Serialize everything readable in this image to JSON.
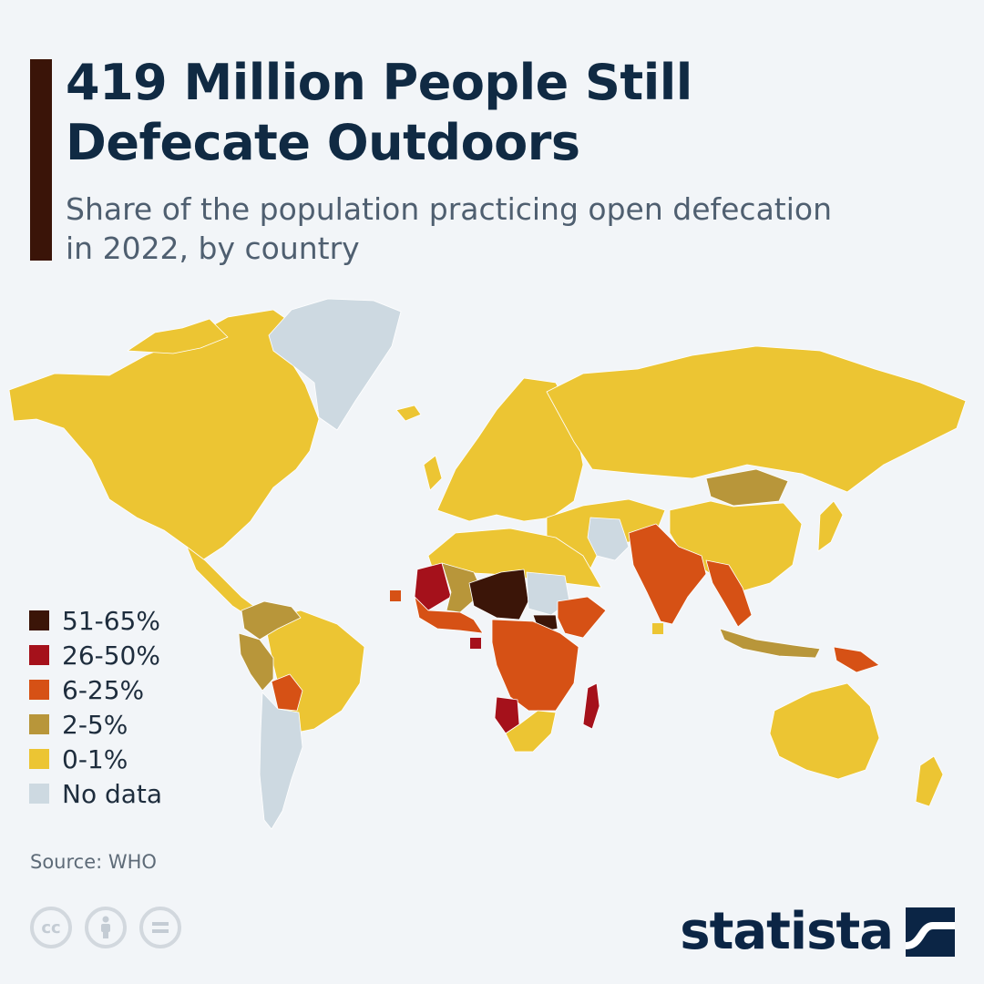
{
  "header": {
    "title": "419 Million People Still Defecate Outdoors",
    "subtitle": "Share of the population practicing open defecation in 2022, by country"
  },
  "legend": [
    {
      "label": "51-65%",
      "color": "#3b1508"
    },
    {
      "label": "26-50%",
      "color": "#a5111b"
    },
    {
      "label": "6-25%",
      "color": "#d65115"
    },
    {
      "label": "2-5%",
      "color": "#b8963a"
    },
    {
      "label": "0-1%",
      "color": "#ecc533"
    },
    {
      "label": "No data",
      "color": "#cdd9e1"
    }
  ],
  "source": "Source: WHO",
  "brand": "statista",
  "license_icons": [
    "creative-commons-icon",
    "attribution-icon",
    "no-derivatives-icon"
  ],
  "map_data": {
    "type": "choropleth",
    "metric": "Share of the population practicing open defecation, 2022",
    "regions": [
      {
        "name": "North America",
        "category": "0-1%"
      },
      {
        "name": "Greenland",
        "category": "No data"
      },
      {
        "name": "Central America",
        "category": "0-1%"
      },
      {
        "name": "Colombia/Venezuela",
        "category": "2-5%"
      },
      {
        "name": "Peru",
        "category": "2-5%"
      },
      {
        "name": "Bolivia",
        "category": "6-25%"
      },
      {
        "name": "Brazil",
        "category": "0-1%"
      },
      {
        "name": "Argentina/Chile",
        "category": "No data"
      },
      {
        "name": "Europe",
        "category": "0-1%"
      },
      {
        "name": "Russia",
        "category": "0-1%"
      },
      {
        "name": "Mongolia",
        "category": "2-5%"
      },
      {
        "name": "China",
        "category": "0-1%"
      },
      {
        "name": "Middle East",
        "category": "0-1%"
      },
      {
        "name": "Iran",
        "category": "No data"
      },
      {
        "name": "India/Pakistan",
        "category": "6-25%"
      },
      {
        "name": "Myanmar/Southeast Asia",
        "category": "6-25%"
      },
      {
        "name": "Indonesia",
        "category": "2-5%"
      },
      {
        "name": "Papua New Guinea",
        "category": "6-25%"
      },
      {
        "name": "Australia",
        "category": "0-1%"
      },
      {
        "name": "North Africa",
        "category": "0-1%"
      },
      {
        "name": "Mauritania",
        "category": "26-50%"
      },
      {
        "name": "Mali",
        "category": "2-5%"
      },
      {
        "name": "Niger/Chad",
        "category": "51-65%"
      },
      {
        "name": "Sudan",
        "category": "No data"
      },
      {
        "name": "South Sudan",
        "category": "51-65%"
      },
      {
        "name": "West Africa",
        "category": "6-25%"
      },
      {
        "name": "Central/East Africa",
        "category": "6-25%"
      },
      {
        "name": "Namibia",
        "category": "26-50%"
      },
      {
        "name": "Madagascar",
        "category": "26-50%"
      },
      {
        "name": "Southern Africa",
        "category": "0-1%"
      }
    ]
  }
}
